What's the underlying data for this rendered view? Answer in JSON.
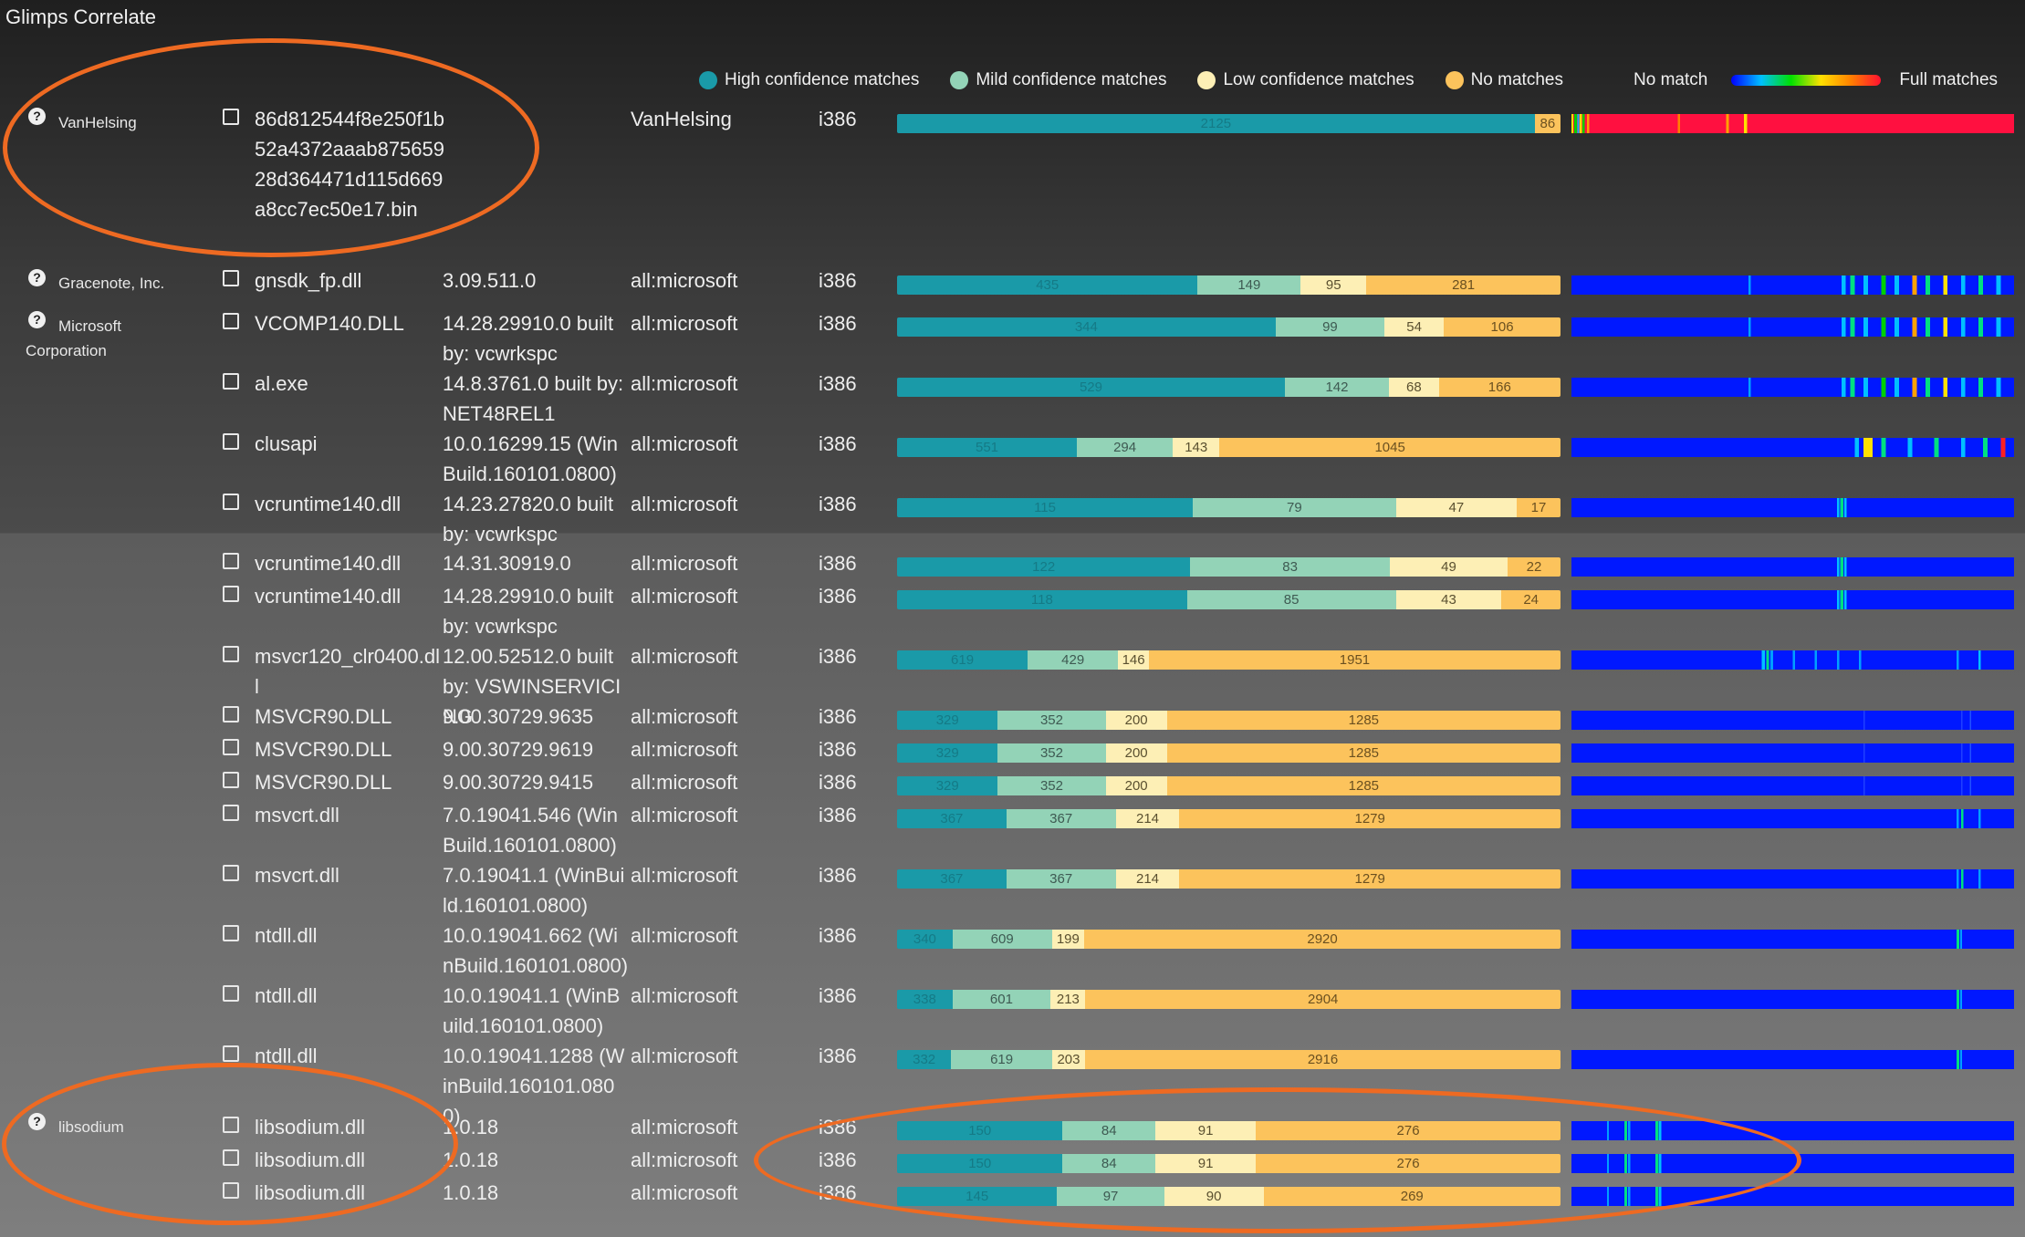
{
  "app": {
    "title": "Glimps Correlate"
  },
  "legend": {
    "items": [
      {
        "label": "High confidence matches",
        "color": "#1a9aa8"
      },
      {
        "label": "Mild confidence matches",
        "color": "#93d3b7"
      },
      {
        "label": "Low confidence matches",
        "color": "#fdefb5"
      },
      {
        "label": "No matches",
        "color": "#fcc35c"
      }
    ],
    "heat_low": "No match",
    "heat_high": "Full matches"
  },
  "vendors": [
    {
      "label": "VanHelsing"
    },
    {
      "label": "Gracenote, Inc."
    },
    {
      "label": "Microsoft Corporation"
    },
    {
      "label": "libsodium"
    }
  ],
  "rows": [
    {
      "file": "86d812544f8e250f1b52a4372aaab87565928d364471d115d669a8cc7ec50e17.bin",
      "version": "VanHelsing",
      "os": "",
      "arch": "i386",
      "values": [
        2125,
        0,
        0,
        86
      ],
      "heat": "vanhelsing"
    },
    {
      "file": "gnsdk_fp.dll",
      "version": "3.09.511.0",
      "os": "all:microsoft",
      "arch": "i386",
      "values": [
        435,
        149,
        95,
        281
      ],
      "heat": "busy"
    },
    {
      "file": "VCOMP140.DLL",
      "version": "14.28.29910.0 built by: vcwrkspc",
      "os": "all:microsoft",
      "arch": "i386",
      "values": [
        344,
        99,
        54,
        106
      ],
      "heat": "busy"
    },
    {
      "file": "al.exe",
      "version": "14.8.3761.0 built by: NET48REL1",
      "os": "all:microsoft",
      "arch": "i386",
      "values": [
        529,
        142,
        68,
        166
      ],
      "heat": "busy"
    },
    {
      "file": "clusapi",
      "version": "10.0.16299.15 (WinBuild.160101.0800)",
      "os": "all:microsoft",
      "arch": "i386",
      "values": [
        551,
        294,
        143,
        1045
      ],
      "heat": "busy2"
    },
    {
      "file": "vcruntime140.dll",
      "version": "14.23.27820.0 built by: vcwrkspc",
      "os": "all:microsoft",
      "arch": "i386",
      "values": [
        115,
        79,
        47,
        17
      ],
      "heat": "single"
    },
    {
      "file": "vcruntime140.dll",
      "version": "14.31.30919.0",
      "os": "all:microsoft",
      "arch": "i386",
      "values": [
        122,
        83,
        49,
        22
      ],
      "heat": "single"
    },
    {
      "file": "vcruntime140.dll",
      "version": "14.28.29910.0 built by: vcwrkspc",
      "os": "all:microsoft",
      "arch": "i386",
      "values": [
        118,
        85,
        43,
        24
      ],
      "heat": "single"
    },
    {
      "file": "msvcr120_clr0400.dll",
      "version": "12.00.52512.0 built by: VSWINSERVICING",
      "os": "all:microsoft",
      "arch": "i386",
      "values": [
        619,
        429,
        146,
        1951
      ],
      "heat": "msvcr"
    },
    {
      "file": "MSVCR90.DLL",
      "version": "9.00.30729.9635",
      "os": "all:microsoft",
      "arch": "i386",
      "values": [
        329,
        352,
        200,
        1285
      ],
      "heat": "faint"
    },
    {
      "file": "MSVCR90.DLL",
      "version": "9.00.30729.9619",
      "os": "all:microsoft",
      "arch": "i386",
      "values": [
        329,
        352,
        200,
        1285
      ],
      "heat": "faint"
    },
    {
      "file": "MSVCR90.DLL",
      "version": "9.00.30729.9415",
      "os": "all:microsoft",
      "arch": "i386",
      "values": [
        329,
        352,
        200,
        1285
      ],
      "heat": "faint"
    },
    {
      "file": "msvcrt.dll",
      "version": "7.0.19041.546 (WinBuild.160101.0800)",
      "os": "all:microsoft",
      "arch": "i386",
      "values": [
        367,
        367,
        214,
        1279
      ],
      "heat": "msvcrt"
    },
    {
      "file": "msvcrt.dll",
      "version": "7.0.19041.1 (WinBuild.160101.0800)",
      "os": "all:microsoft",
      "arch": "i386",
      "values": [
        367,
        367,
        214,
        1279
      ],
      "heat": "msvcrt"
    },
    {
      "file": "ntdll.dll",
      "version": "10.0.19041.662 (WinBuild.160101.0800)",
      "os": "all:microsoft",
      "arch": "i386",
      "values": [
        340,
        609,
        199,
        2920
      ],
      "heat": "ntdll"
    },
    {
      "file": "ntdll.dll",
      "version": "10.0.19041.1 (WinBuild.160101.0800)",
      "os": "all:microsoft",
      "arch": "i386",
      "values": [
        338,
        601,
        213,
        2904
      ],
      "heat": "ntdll"
    },
    {
      "file": "ntdll.dll",
      "version": "10.0.19041.1288 (WinBuild.160101.0800)",
      "os": "all:microsoft",
      "arch": "i386",
      "values": [
        332,
        619,
        203,
        2916
      ],
      "heat": "ntdll"
    },
    {
      "file": "libsodium.dll",
      "version": "1.0.18",
      "os": "all:microsoft",
      "arch": "i386",
      "values": [
        150,
        84,
        91,
        276
      ],
      "heat": "sodium"
    },
    {
      "file": "libsodium.dll",
      "version": "1.0.18",
      "os": "all:microsoft",
      "arch": "i386",
      "values": [
        150,
        84,
        91,
        276
      ],
      "heat": "sodium"
    },
    {
      "file": "libsodium.dll",
      "version": "1.0.18",
      "os": "all:microsoft",
      "arch": "i386",
      "values": [
        145,
        97,
        90,
        269
      ],
      "heat": "sodium"
    }
  ]
}
